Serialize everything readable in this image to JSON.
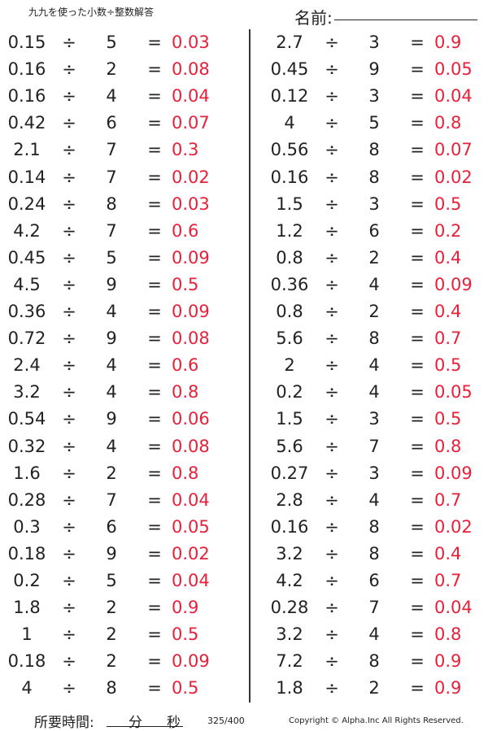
{
  "header": {
    "title": "九九を使った小数÷整数解答",
    "name_label": "名前:"
  },
  "operator": "÷",
  "equals": "=",
  "colors": {
    "answer": "#e8203a",
    "text": "#222222"
  },
  "columns": [
    [
      [
        "0.15",
        "5",
        "0.03"
      ],
      [
        "0.16",
        "2",
        "0.08"
      ],
      [
        "0.16",
        "4",
        "0.04"
      ],
      [
        "0.42",
        "6",
        "0.07"
      ],
      [
        "2.1",
        "7",
        "0.3"
      ],
      [
        "0.14",
        "7",
        "0.02"
      ],
      [
        "0.24",
        "8",
        "0.03"
      ],
      [
        "4.2",
        "7",
        "0.6"
      ],
      [
        "0.45",
        "5",
        "0.09"
      ],
      [
        "4.5",
        "9",
        "0.5"
      ],
      [
        "0.36",
        "4",
        "0.09"
      ],
      [
        "0.72",
        "9",
        "0.08"
      ],
      [
        "2.4",
        "4",
        "0.6"
      ],
      [
        "3.2",
        "4",
        "0.8"
      ],
      [
        "0.54",
        "9",
        "0.06"
      ],
      [
        "0.32",
        "4",
        "0.08"
      ],
      [
        "1.6",
        "2",
        "0.8"
      ],
      [
        "0.28",
        "7",
        "0.04"
      ],
      [
        "0.3",
        "6",
        "0.05"
      ],
      [
        "0.18",
        "9",
        "0.02"
      ],
      [
        "0.2",
        "5",
        "0.04"
      ],
      [
        "1.8",
        "2",
        "0.9"
      ],
      [
        "1",
        "2",
        "0.5"
      ],
      [
        "0.18",
        "2",
        "0.09"
      ],
      [
        "4",
        "8",
        "0.5"
      ]
    ],
    [
      [
        "2.7",
        "3",
        "0.9"
      ],
      [
        "0.45",
        "9",
        "0.05"
      ],
      [
        "0.12",
        "3",
        "0.04"
      ],
      [
        "4",
        "5",
        "0.8"
      ],
      [
        "0.56",
        "8",
        "0.07"
      ],
      [
        "0.16",
        "8",
        "0.02"
      ],
      [
        "1.5",
        "3",
        "0.5"
      ],
      [
        "1.2",
        "6",
        "0.2"
      ],
      [
        "0.8",
        "2",
        "0.4"
      ],
      [
        "0.36",
        "4",
        "0.09"
      ],
      [
        "0.8",
        "2",
        "0.4"
      ],
      [
        "5.6",
        "8",
        "0.7"
      ],
      [
        "2",
        "4",
        "0.5"
      ],
      [
        "0.2",
        "4",
        "0.05"
      ],
      [
        "1.5",
        "3",
        "0.5"
      ],
      [
        "5.6",
        "7",
        "0.8"
      ],
      [
        "0.27",
        "3",
        "0.09"
      ],
      [
        "2.8",
        "4",
        "0.7"
      ],
      [
        "0.16",
        "8",
        "0.02"
      ],
      [
        "3.2",
        "8",
        "0.4"
      ],
      [
        "4.2",
        "6",
        "0.7"
      ],
      [
        "0.28",
        "7",
        "0.04"
      ],
      [
        "3.2",
        "4",
        "0.8"
      ],
      [
        "7.2",
        "8",
        "0.9"
      ],
      [
        "1.8",
        "2",
        "0.9"
      ]
    ]
  ],
  "footer": {
    "time_label": "所要時間:",
    "minutes": "分",
    "seconds": "秒",
    "page": "325/400",
    "copyright": "Copyright © Alpha.Inc All Rights Reserved."
  }
}
